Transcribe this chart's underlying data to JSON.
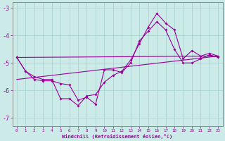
{
  "xlabel": "Windchill (Refroidissement éolien,°C)",
  "background_color": "#cceae8",
  "grid_color": "#aad4d0",
  "line_color": "#990099",
  "xlim": [
    -0.5,
    23.5
  ],
  "ylim": [
    -7.3,
    -2.8
  ],
  "xticks": [
    0,
    1,
    2,
    3,
    4,
    5,
    6,
    7,
    8,
    9,
    10,
    11,
    12,
    13,
    14,
    15,
    16,
    17,
    18,
    19,
    20,
    21,
    22,
    23
  ],
  "yticks": [
    -7,
    -6,
    -5,
    -4,
    -3
  ],
  "series": [
    {
      "x": [
        0,
        1,
        2,
        3,
        4,
        5,
        6,
        7,
        8,
        9,
        10,
        11,
        12,
        13,
        14,
        15,
        16,
        17,
        18,
        19,
        20,
        21,
        22,
        23
      ],
      "y": [
        -4.8,
        -5.3,
        -5.5,
        -5.6,
        -5.6,
        -6.3,
        -6.3,
        -6.55,
        -6.2,
        -6.15,
        -5.7,
        -5.45,
        -5.3,
        -4.9,
        -4.3,
        -3.7,
        -3.2,
        -3.55,
        -3.8,
        -4.85,
        -4.55,
        -4.75,
        -4.65,
        -4.75
      ]
    },
    {
      "x": [
        0,
        1,
        2,
        3,
        4,
        5,
        6,
        7,
        8,
        9,
        10,
        11,
        12,
        13,
        14,
        15,
        16,
        17,
        18,
        19,
        20,
        21,
        22,
        23
      ],
      "y": [
        -4.8,
        -5.3,
        -5.6,
        -5.65,
        -5.65,
        -5.75,
        -5.8,
        -6.35,
        -6.25,
        -6.5,
        -5.25,
        -5.25,
        -5.35,
        -5.0,
        -4.2,
        -3.85,
        -3.5,
        -3.8,
        -4.5,
        -5.0,
        -5.0,
        -4.85,
        -4.7,
        -4.8
      ]
    },
    {
      "x": [
        0,
        23
      ],
      "y": [
        -4.8,
        -4.75
      ]
    },
    {
      "x": [
        0,
        23
      ],
      "y": [
        -5.6,
        -4.75
      ]
    }
  ]
}
